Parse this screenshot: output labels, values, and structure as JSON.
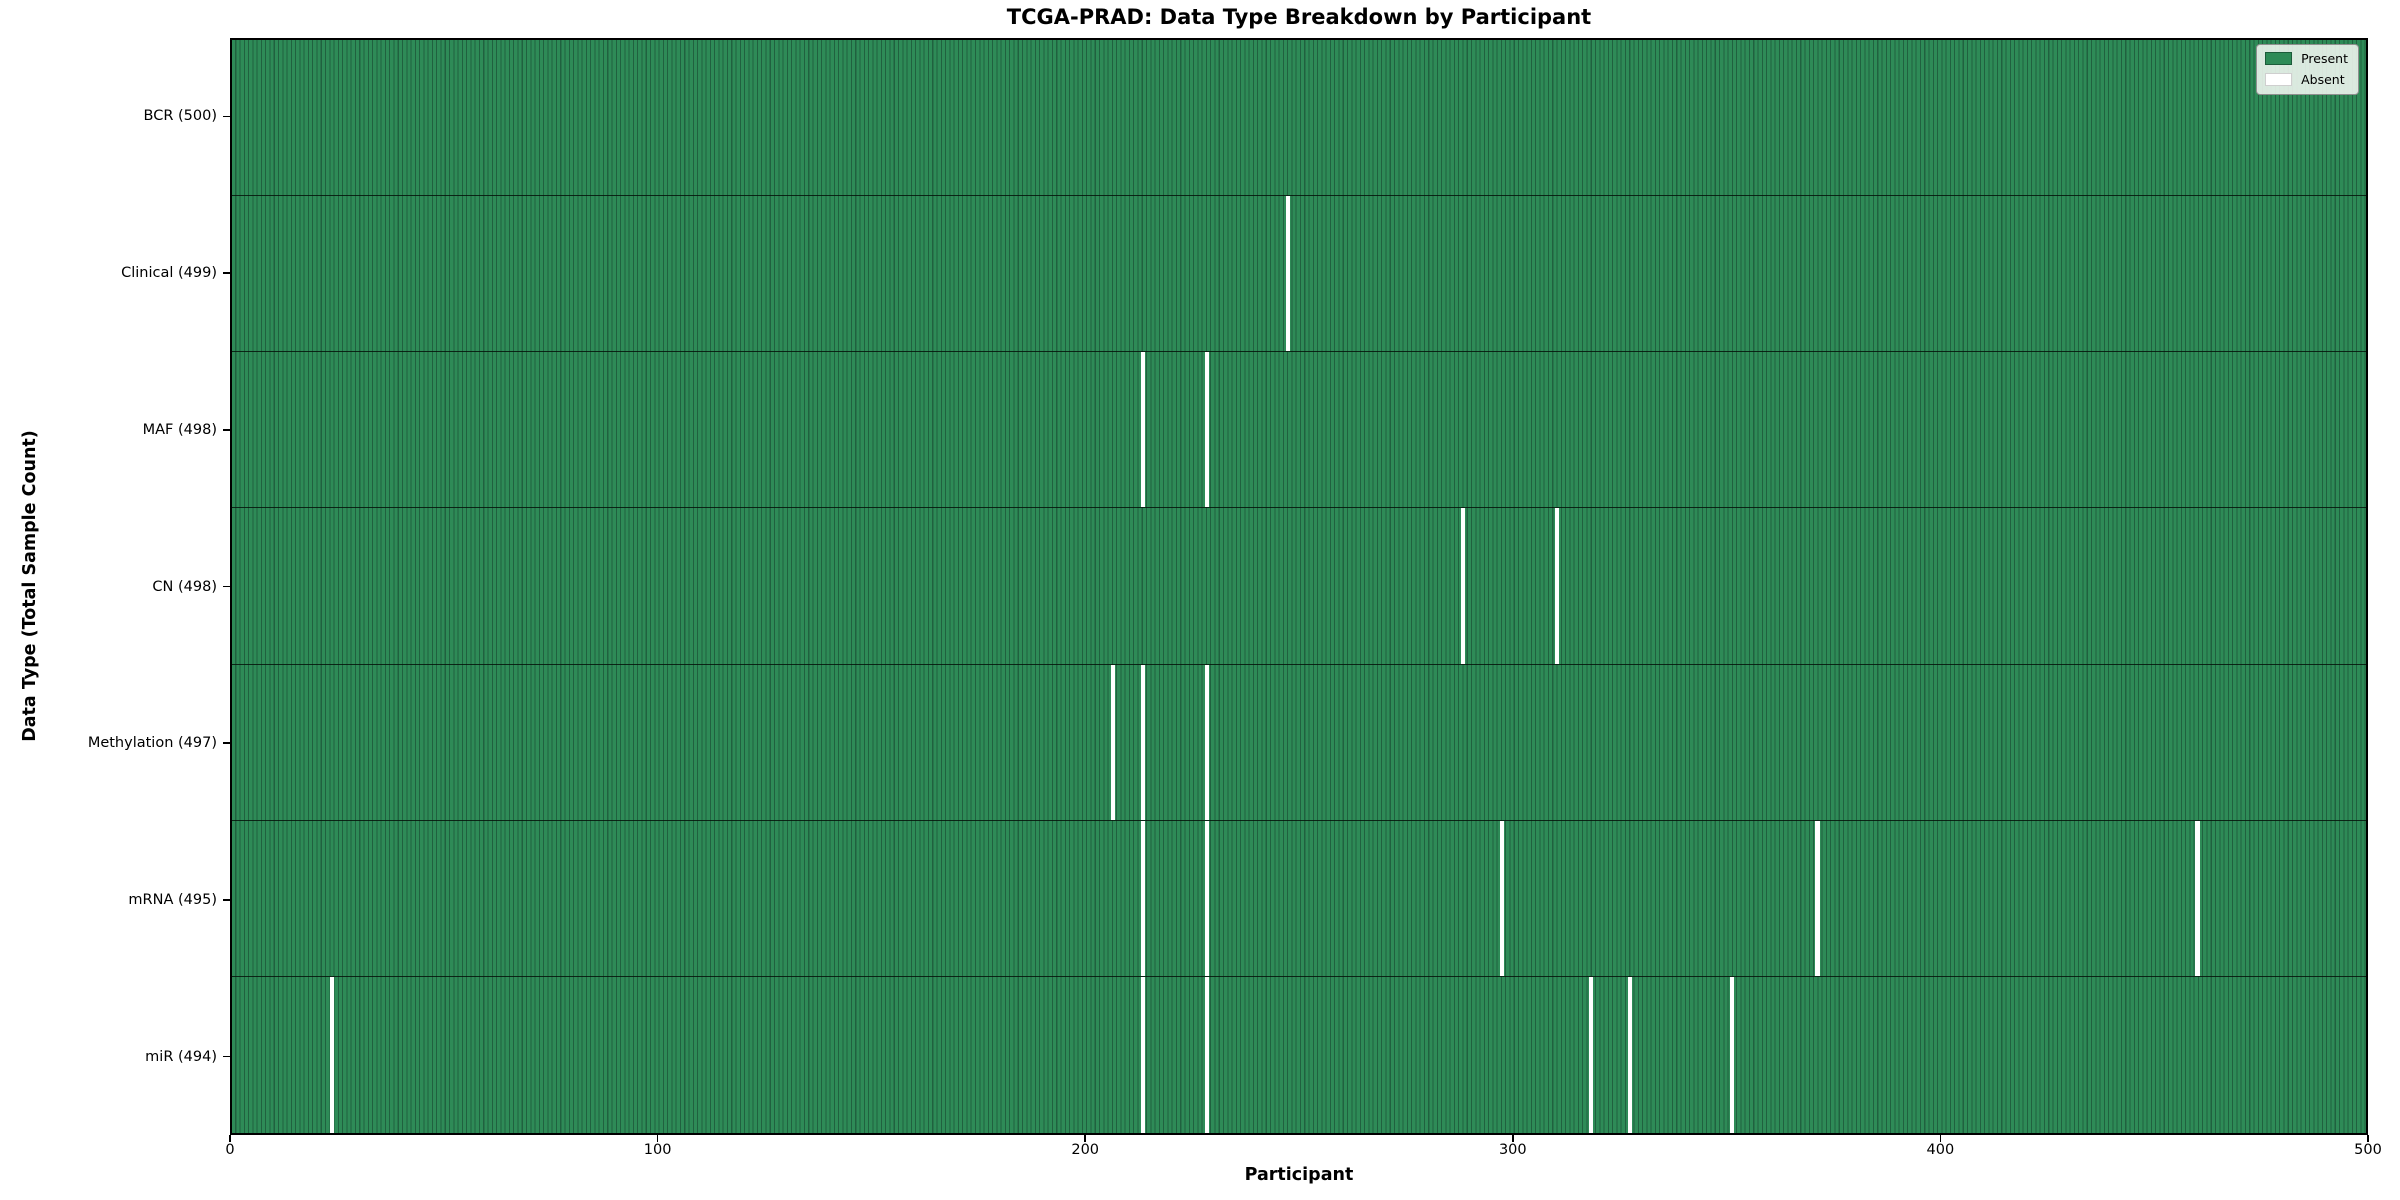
{
  "chart_data": {
    "type": "heatmap",
    "title": "TCGA-PRAD: Data Type Breakdown by Participant",
    "xlabel": "Participant",
    "ylabel": "Data Type (Total Sample Count)",
    "x_range": [
      0,
      500
    ],
    "x_ticks": [
      0,
      100,
      200,
      300,
      400,
      500
    ],
    "grid": false,
    "legend_position": "upper right",
    "legend": [
      {
        "label": "Present",
        "color": "#2e8b57"
      },
      {
        "label": "Absent",
        "color": "#ffffff"
      }
    ],
    "rows": [
      {
        "label": "BCR (500)",
        "data_type": "BCR",
        "present_count": 500,
        "absent_participants": []
      },
      {
        "label": "Clinical (499)",
        "data_type": "Clinical",
        "present_count": 499,
        "absent_participants": [
          247
        ]
      },
      {
        "label": "MAF (498)",
        "data_type": "MAF",
        "present_count": 498,
        "absent_participants": [
          213,
          228
        ]
      },
      {
        "label": "CN (498)",
        "data_type": "CN",
        "present_count": 498,
        "absent_participants": [
          288,
          310
        ]
      },
      {
        "label": "Methylation (497)",
        "data_type": "Methylation",
        "present_count": 497,
        "absent_participants": [
          206,
          213,
          228
        ]
      },
      {
        "label": "mRNA (495)",
        "data_type": "mRNA",
        "present_count": 495,
        "absent_participants": [
          213,
          228,
          297,
          371,
          460
        ]
      },
      {
        "label": "miR (494)",
        "data_type": "miR",
        "present_count": 494,
        "absent_participants": [
          23,
          213,
          228,
          318,
          327,
          351
        ]
      }
    ],
    "colors": {
      "present": "#2e8b57",
      "cell_edge": "#20613f",
      "absent": "#ffffff"
    }
  }
}
